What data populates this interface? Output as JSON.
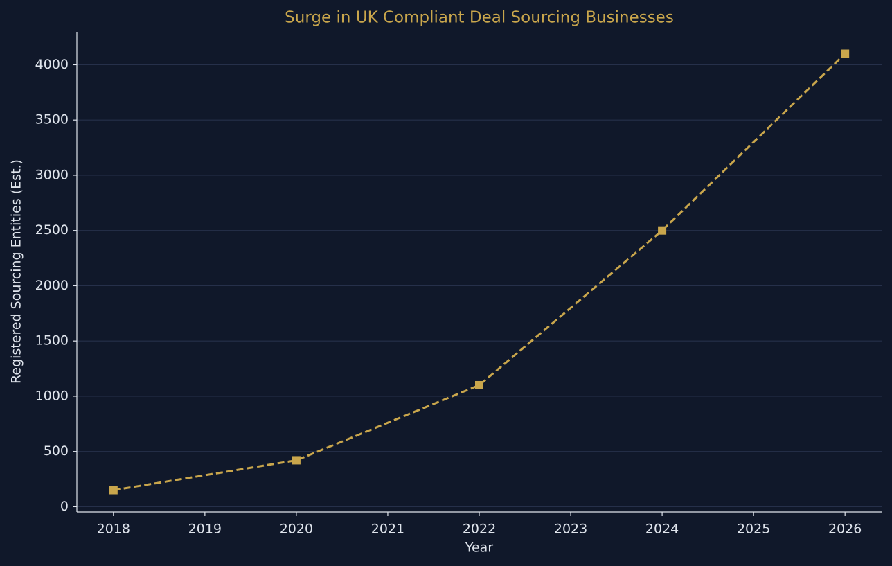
{
  "chart_data": {
    "type": "line",
    "title": "Surge in UK Compliant Deal Sourcing Businesses",
    "xlabel": "Year",
    "ylabel": "Registered Sourcing Entities (Est.)",
    "x": [
      2018,
      2020,
      2022,
      2024,
      2026
    ],
    "series": [
      {
        "color": "#c9a64c",
        "values": [
          150,
          420,
          1100,
          2500,
          4100
        ]
      }
    ],
    "xlim": [
      2017.6,
      2026.4
    ],
    "xticks": [
      2018,
      2019,
      2020,
      2021,
      2022,
      2023,
      2024,
      2025,
      2026
    ],
    "ylim": [
      -47.5,
      4297.5
    ],
    "yticks": [
      0,
      500,
      1000,
      1500,
      2000,
      2500,
      3000,
      3500,
      4000
    ],
    "grid": true
  }
}
